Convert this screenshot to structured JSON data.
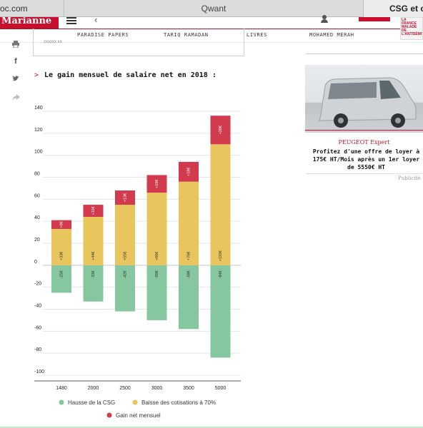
{
  "browser": {
    "tabs": [
      {
        "label": "oc.com"
      },
      {
        "label": "Qwant"
      },
      {
        "label": "CSG et co"
      }
    ]
  },
  "site": {
    "logo_text": "Marianne",
    "promo_thumb_text": "LA FRANCE MALADE DE L'ANTISÉMITISME"
  },
  "nav": {
    "items": [
      "PARADISE PAPERS",
      "TARIQ RAMADAN",
      "LIVRES",
      "MOHAMED MERAH"
    ]
  },
  "share": {
    "icons": [
      "print-icon",
      "facebook-icon",
      "twitter-icon",
      "share-icon"
    ]
  },
  "previous_box": {
    "text": "xxxxxx xx"
  },
  "section": {
    "arrow": ">",
    "title": "Le gain mensuel de salaire net en 2018 :"
  },
  "ad": {
    "brand": "PEUGEOT Expert",
    "text": "Profitez d'une offre de loyer à 175€ HT/Mois après un 1er loyer de 5550€ HT",
    "label": "Publicité"
  },
  "colors": {
    "csg": "#86c79f",
    "cotisations": "#e9c55d",
    "gain": "#d23a4d",
    "brand_red": "#c8102e"
  },
  "chart_data": {
    "type": "bar",
    "title": "",
    "xlabel": "",
    "ylabel": "",
    "categories": [
      "1480",
      "2000",
      "2500",
      "3000",
      "3500",
      "5000"
    ],
    "ylim": [
      -100,
      140
    ],
    "yticks": [
      140,
      120,
      100,
      80,
      60,
      40,
      20,
      0,
      -20,
      -40,
      -60,
      -80,
      -100
    ],
    "grid": true,
    "series": [
      {
        "name": "Hausse de la CSG",
        "values": [
          -25,
          -33,
          -42,
          -50,
          -58,
          -84
        ],
        "labels": [
          "-25€",
          "-33€",
          "-42€",
          "-50€",
          "-58€",
          "-84€"
        ]
      },
      {
        "name": "Baisse des cotisations à 70%",
        "values": [
          33,
          44,
          55,
          66,
          76,
          110
        ],
        "labels": [
          "+33€",
          "+44€",
          "+55€",
          "+66€",
          "+76€",
          "+110€"
        ]
      },
      {
        "name": "Gain net mensuel",
        "values": [
          8,
          11,
          13,
          16,
          18,
          26
        ],
        "labels": [
          "+8€",
          "+11€",
          "+13€",
          "+16€",
          "+18€",
          "+26€"
        ]
      }
    ],
    "legend_position": "bottom"
  }
}
